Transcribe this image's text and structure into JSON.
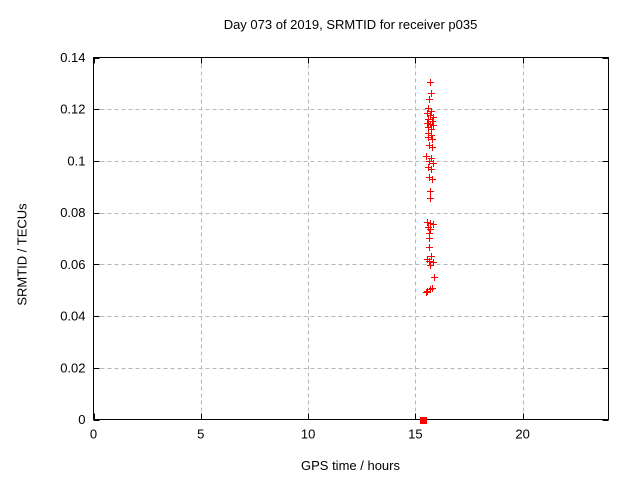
{
  "window": {
    "background": "#ffffff"
  },
  "colors": {
    "marker": "#ff0000",
    "grid": "#b8b8b8",
    "axis": "#000000",
    "text": "#000000",
    "background": "#ffffff"
  },
  "chart_data": {
    "type": "scatter",
    "title": "Day 073 of 2019, SRMTID for receiver p035",
    "xlabel": "GPS time / hours",
    "ylabel": "SRMTID / TECUs",
    "xlim": [
      0,
      24
    ],
    "ylim": [
      0,
      0.14
    ],
    "x_ticks": [
      0,
      5,
      10,
      15,
      20
    ],
    "x_tick_labels": [
      "0",
      "5",
      "10",
      "15",
      "20"
    ],
    "y_ticks": [
      0,
      0.02,
      0.04,
      0.06,
      0.08,
      0.1,
      0.12,
      0.14
    ],
    "y_tick_labels": [
      "0",
      "0.02",
      "0.04",
      "0.06",
      "0.08",
      "0.1",
      "0.12",
      "0.14"
    ],
    "grid": true,
    "grid_style": "dashed",
    "legend": "none",
    "series": [
      {
        "name": "SRMTID",
        "marker": "plus",
        "color": "#ff0000",
        "points": [
          [
            15.69,
            0.1306
          ],
          [
            15.73,
            0.1264
          ],
          [
            15.64,
            0.1238
          ],
          [
            15.58,
            0.1203
          ],
          [
            15.73,
            0.1194
          ],
          [
            15.53,
            0.1184
          ],
          [
            15.69,
            0.1178
          ],
          [
            15.84,
            0.1171
          ],
          [
            15.61,
            0.1161
          ],
          [
            15.76,
            0.1156
          ],
          [
            15.53,
            0.1148
          ],
          [
            15.69,
            0.1142
          ],
          [
            15.84,
            0.1138
          ],
          [
            15.61,
            0.113
          ],
          [
            15.73,
            0.1123
          ],
          [
            15.61,
            0.1107
          ],
          [
            15.73,
            0.1099
          ],
          [
            15.58,
            0.1091
          ],
          [
            15.76,
            0.1084
          ],
          [
            15.64,
            0.1061
          ],
          [
            15.76,
            0.1052
          ],
          [
            15.48,
            0.1019
          ],
          [
            15.73,
            0.1011
          ],
          [
            15.64,
            0.1001
          ],
          [
            15.84,
            0.0993
          ],
          [
            15.58,
            0.0978
          ],
          [
            15.72,
            0.097
          ],
          [
            15.62,
            0.0939
          ],
          [
            15.78,
            0.0931
          ],
          [
            15.66,
            0.0885
          ],
          [
            15.66,
            0.0855
          ],
          [
            15.56,
            0.0765
          ],
          [
            15.68,
            0.0759
          ],
          [
            15.81,
            0.0756
          ],
          [
            15.6,
            0.0743
          ],
          [
            15.66,
            0.0735
          ],
          [
            15.62,
            0.072
          ],
          [
            15.62,
            0.0701
          ],
          [
            15.62,
            0.0668
          ],
          [
            15.74,
            0.0632
          ],
          [
            15.56,
            0.0619
          ],
          [
            15.65,
            0.0614
          ],
          [
            15.8,
            0.061
          ],
          [
            15.68,
            0.0597
          ],
          [
            15.85,
            0.055
          ],
          [
            15.5,
            0.0494
          ],
          [
            15.56,
            0.0498
          ],
          [
            15.68,
            0.0503
          ],
          [
            15.78,
            0.0507
          ]
        ]
      },
      {
        "name": "baseline-marker",
        "marker": "filled-square",
        "color": "#ff0000",
        "points": [
          [
            15.35,
            0.0
          ]
        ]
      }
    ]
  }
}
